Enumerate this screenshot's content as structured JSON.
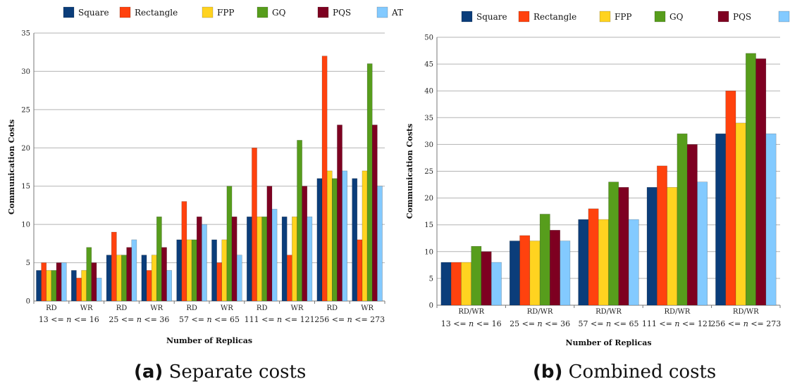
{
  "legend": [
    "Square",
    "Rectangle",
    "FPP",
    "GQ",
    "PQS",
    "AT"
  ],
  "colors": {
    "Square": "#0b3d7a",
    "Rectangle": "#ff420e",
    "FPP": "#ffd320",
    "GQ": "#579d1c",
    "PQS": "#7e0021",
    "AT": "#83caff"
  },
  "captions": {
    "a": {
      "tag": "(a)",
      "text": "Separate costs"
    },
    "b": {
      "tag": "(b)",
      "text": "Combined costs"
    }
  },
  "chart_data": [
    {
      "type": "bar",
      "xlabel": "Number of Replicas",
      "ylabel": "Communication Costs",
      "ylim": [
        0,
        35
      ],
      "yticks": [
        "0",
        "5",
        "10",
        "15",
        "20",
        "25",
        "30",
        "35"
      ],
      "grid": true,
      "legend_position": "top",
      "categories": [
        "RD",
        "WR",
        "RD",
        "WR",
        "RD",
        "WR",
        "RD",
        "WR",
        "RD",
        "WR"
      ],
      "groups": [
        {
          "pre": "13 <= ",
          "var": "n",
          "post": " <= 16",
          "span": [
            0,
            1
          ]
        },
        {
          "pre": "25 <= ",
          "var": "n",
          "post": " <= 36",
          "span": [
            2,
            3
          ]
        },
        {
          "pre": "57 <= ",
          "var": "n",
          "post": " <= 65",
          "span": [
            4,
            5
          ]
        },
        {
          "pre": "111 <= ",
          "var": "n",
          "post": " <= 121",
          "span": [
            6,
            7
          ]
        },
        {
          "pre": "256 <= ",
          "var": "n",
          "post": " <= 273",
          "span": [
            8,
            9
          ]
        }
      ],
      "series": [
        {
          "name": "Square",
          "values": [
            4,
            4,
            6,
            6,
            8,
            8,
            11,
            11,
            16,
            16
          ]
        },
        {
          "name": "Rectangle",
          "values": [
            5,
            3,
            9,
            4,
            13,
            5,
            20,
            6,
            32,
            8
          ]
        },
        {
          "name": "FPP",
          "values": [
            4,
            4,
            6,
            6,
            8,
            8,
            11,
            11,
            17,
            17
          ]
        },
        {
          "name": "GQ",
          "values": [
            4,
            7,
            6,
            11,
            8,
            15,
            11,
            21,
            16,
            31
          ]
        },
        {
          "name": "PQS",
          "values": [
            5,
            5,
            7,
            7,
            11,
            11,
            15,
            15,
            23,
            23
          ]
        },
        {
          "name": "AT",
          "values": [
            5,
            3,
            8,
            4,
            10,
            6,
            12,
            11,
            17,
            15
          ]
        }
      ]
    },
    {
      "type": "bar",
      "xlabel": "Number of Replicas",
      "ylabel": "Communication Costs",
      "ylim": [
        0,
        50
      ],
      "yticks": [
        "0",
        "5",
        "10",
        "15",
        "20",
        "25",
        "30",
        "35",
        "40",
        "45",
        "50"
      ],
      "grid": true,
      "legend_position": "top",
      "categories": [
        "RD/WR",
        "RD/WR",
        "RD/WR",
        "RD/WR",
        "RD/WR"
      ],
      "groups": [
        {
          "pre": "13 <= ",
          "var": "n",
          "post": " <= 16",
          "span": [
            0,
            0
          ]
        },
        {
          "pre": "25 <= ",
          "var": "n",
          "post": " <= 36",
          "span": [
            1,
            1
          ]
        },
        {
          "pre": "57 <= ",
          "var": "n",
          "post": " <= 65",
          "span": [
            2,
            2
          ]
        },
        {
          "pre": "111 <= ",
          "var": "n",
          "post": " <= 121",
          "span": [
            3,
            3
          ]
        },
        {
          "pre": "256 <= ",
          "var": "n",
          "post": " <= 273",
          "span": [
            4,
            4
          ]
        }
      ],
      "series": [
        {
          "name": "Square",
          "values": [
            8,
            12,
            16,
            22,
            32
          ]
        },
        {
          "name": "Rectangle",
          "values": [
            8,
            13,
            18,
            26,
            40
          ]
        },
        {
          "name": "FPP",
          "values": [
            8,
            12,
            16,
            22,
            34
          ]
        },
        {
          "name": "GQ",
          "values": [
            11,
            17,
            23,
            32,
            47
          ]
        },
        {
          "name": "PQS",
          "values": [
            10,
            14,
            22,
            30,
            46
          ]
        },
        {
          "name": "AT",
          "values": [
            8,
            12,
            16,
            23,
            32
          ]
        }
      ]
    }
  ]
}
